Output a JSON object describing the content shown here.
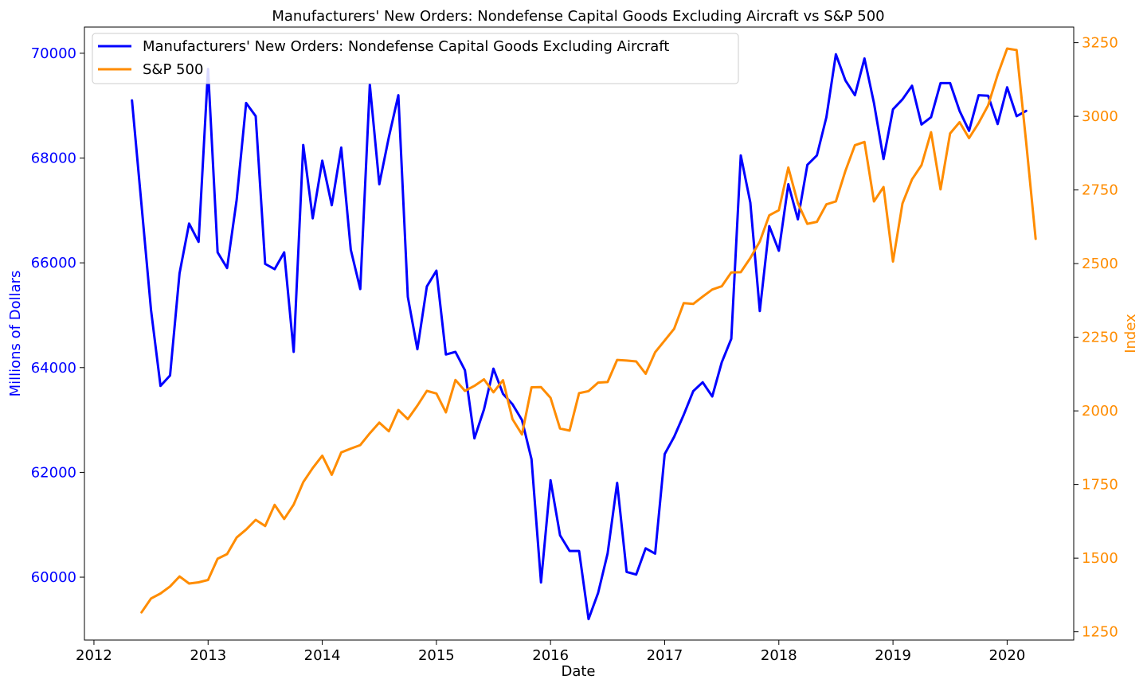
{
  "chart_data": {
    "type": "line",
    "title": "Manufacturers' New Orders: Nondefense Capital Goods Excluding Aircraft vs S&P 500",
    "xlabel": "Date",
    "ylabel_left": "Millions of Dollars",
    "ylabel_right": "Index",
    "legend_position": "top-left",
    "grid": false,
    "x_ticks": [
      "2012",
      "2013",
      "2014",
      "2015",
      "2016",
      "2017",
      "2018",
      "2019",
      "2020"
    ],
    "x_range": [
      "2011-12",
      "2020-08"
    ],
    "y_left_ticks": [
      "60000",
      "62000",
      "64000",
      "66000",
      "68000",
      "70000"
    ],
    "y_left_range": [
      58800,
      70500
    ],
    "y_right_ticks": [
      "1250",
      "1500",
      "1750",
      "2000",
      "2250",
      "2500",
      "2750",
      "3000",
      "3250"
    ],
    "y_right_range": [
      1222,
      3303
    ],
    "series": [
      {
        "name": "Manufacturers' New Orders: Nondefense Capital Goods Excluding Aircraft",
        "axis": "left",
        "color": "#0000ff",
        "dates": [
          "2012-05",
          "2012-06",
          "2012-07",
          "2012-08",
          "2012-09",
          "2012-10",
          "2012-11",
          "2012-12",
          "2013-01",
          "2013-02",
          "2013-03",
          "2013-04",
          "2013-05",
          "2013-06",
          "2013-07",
          "2013-08",
          "2013-09",
          "2013-10",
          "2013-11",
          "2013-12",
          "2014-01",
          "2014-02",
          "2014-03",
          "2014-04",
          "2014-05",
          "2014-06",
          "2014-07",
          "2014-08",
          "2014-09",
          "2014-10",
          "2014-11",
          "2014-12",
          "2015-01",
          "2015-02",
          "2015-03",
          "2015-04",
          "2015-05",
          "2015-06",
          "2015-07",
          "2015-08",
          "2015-09",
          "2015-10",
          "2015-11",
          "2015-12",
          "2016-01",
          "2016-02",
          "2016-03",
          "2016-04",
          "2016-05",
          "2016-06",
          "2016-07",
          "2016-08",
          "2016-09",
          "2016-10",
          "2016-11",
          "2016-12",
          "2017-01",
          "2017-02",
          "2017-03",
          "2017-04",
          "2017-05",
          "2017-06",
          "2017-07",
          "2017-08",
          "2017-09",
          "2017-10",
          "2017-11",
          "2017-12",
          "2018-01",
          "2018-02",
          "2018-03",
          "2018-04",
          "2018-05",
          "2018-06",
          "2018-07",
          "2018-08",
          "2018-09",
          "2018-10",
          "2018-11",
          "2018-12",
          "2019-01",
          "2019-02",
          "2019-03",
          "2019-04",
          "2019-05",
          "2019-06",
          "2019-07",
          "2019-08",
          "2019-09",
          "2019-10",
          "2019-11",
          "2019-12",
          "2020-01",
          "2020-02",
          "2020-03"
        ],
        "values": [
          69100,
          67100,
          65100,
          63650,
          63850,
          65800,
          66750,
          66400,
          69700,
          66200,
          65900,
          67200,
          69050,
          68800,
          65980,
          65880,
          66200,
          64300,
          68250,
          66850,
          67950,
          67100,
          68200,
          66250,
          65500,
          69400,
          67500,
          68400,
          69200,
          65350,
          64350,
          65550,
          65850,
          64250,
          64300,
          63950,
          62650,
          63200,
          63980,
          63500,
          63300,
          63000,
          62250,
          59900,
          61850,
          60800,
          60500,
          60500,
          59200,
          59700,
          60450,
          61800,
          60100,
          60050,
          60550,
          60450,
          62350,
          62680,
          63100,
          63550,
          63720,
          63450,
          64100,
          64550,
          68050,
          67150,
          65080,
          66700,
          66230,
          67500,
          66830,
          67870,
          68050,
          68780,
          69980,
          69480,
          69200,
          69900,
          69050,
          67980,
          68930,
          69120,
          69380,
          68640,
          68780,
          69430,
          69430,
          68900,
          68520,
          69200,
          69190,
          68650,
          69350,
          68800,
          68900
        ]
      },
      {
        "name": "S&P 500",
        "axis": "right",
        "color": "#ff8c00",
        "dates": [
          "2012-06",
          "2012-07",
          "2012-08",
          "2012-09",
          "2012-10",
          "2012-11",
          "2012-12",
          "2013-01",
          "2013-02",
          "2013-03",
          "2013-04",
          "2013-05",
          "2013-06",
          "2013-07",
          "2013-08",
          "2013-09",
          "2013-10",
          "2013-11",
          "2013-12",
          "2014-01",
          "2014-02",
          "2014-03",
          "2014-04",
          "2014-05",
          "2014-06",
          "2014-07",
          "2014-08",
          "2014-09",
          "2014-10",
          "2014-11",
          "2014-12",
          "2015-01",
          "2015-02",
          "2015-03",
          "2015-04",
          "2015-05",
          "2015-06",
          "2015-07",
          "2015-08",
          "2015-09",
          "2015-10",
          "2015-11",
          "2015-12",
          "2016-01",
          "2016-02",
          "2016-03",
          "2016-04",
          "2016-05",
          "2016-06",
          "2016-07",
          "2016-08",
          "2016-09",
          "2016-10",
          "2016-11",
          "2016-12",
          "2017-01",
          "2017-02",
          "2017-03",
          "2017-04",
          "2017-05",
          "2017-06",
          "2017-07",
          "2017-08",
          "2017-09",
          "2017-10",
          "2017-11",
          "2017-12",
          "2018-01",
          "2018-02",
          "2018-03",
          "2018-04",
          "2018-05",
          "2018-06",
          "2018-07",
          "2018-08",
          "2018-09",
          "2018-10",
          "2018-11",
          "2018-12",
          "2019-01",
          "2019-02",
          "2019-03",
          "2019-04",
          "2019-05",
          "2019-06",
          "2019-07",
          "2019-08",
          "2019-09",
          "2019-10",
          "2019-11",
          "2019-12",
          "2020-01",
          "2020-02",
          "2020-03",
          "2020-04"
        ],
        "values": [
          1316,
          1363,
          1380,
          1404,
          1438,
          1414,
          1418,
          1426,
          1498,
          1514,
          1570,
          1597,
          1630,
          1609,
          1681,
          1633,
          1682,
          1758,
          1806,
          1848,
          1783,
          1859,
          1872,
          1884,
          1924,
          1960,
          1931,
          2003,
          1972,
          2018,
          2068,
          2059,
          1995,
          2105,
          2068,
          2085,
          2107,
          2063,
          2104,
          1972,
          1920,
          2080,
          2081,
          2044,
          1940,
          1933,
          2060,
          2067,
          2096,
          2098,
          2173,
          2171,
          2168,
          2126,
          2199,
          2239,
          2279,
          2366,
          2363,
          2388,
          2412,
          2423,
          2470,
          2471,
          2519,
          2575,
          2664,
          2681,
          2826,
          2705,
          2635,
          2642,
          2701,
          2711,
          2815,
          2902,
          2913,
          2711,
          2760,
          2507,
          2704,
          2786,
          2834,
          2946,
          2752,
          2942,
          2980,
          2926,
          2977,
          3037,
          3141,
          3230,
          3225,
          2912,
          2584
        ]
      }
    ]
  }
}
